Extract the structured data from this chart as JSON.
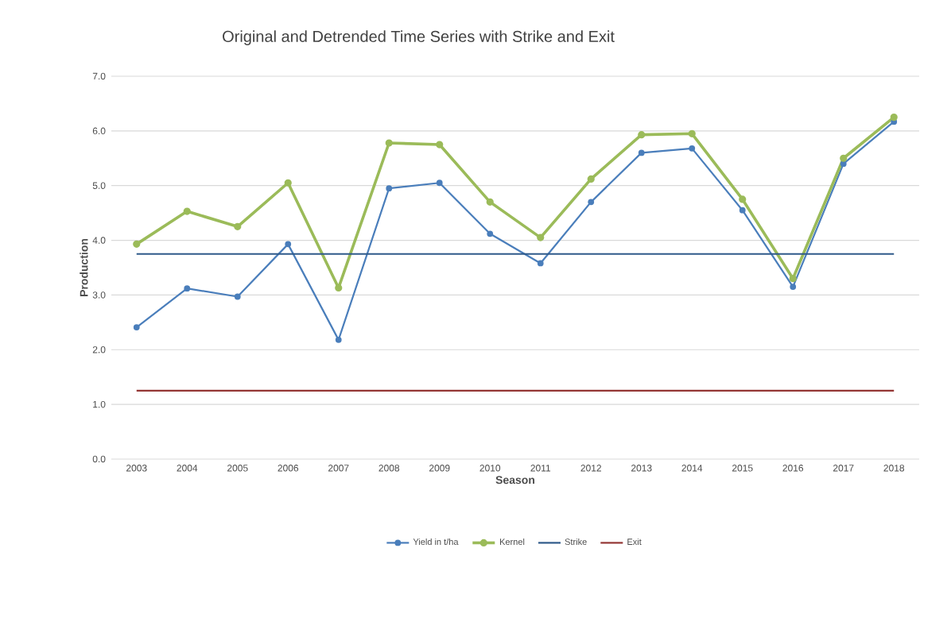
{
  "chart_data": {
    "type": "line",
    "title": "Original and Detrended Time Series with Strike and Exit",
    "xlabel": "Season",
    "ylabel": "Production",
    "categories": [
      "2003",
      "2004",
      "2005",
      "2006",
      "2007",
      "2008",
      "2009",
      "2010",
      "2011",
      "2012",
      "2013",
      "2014",
      "2015",
      "2016",
      "2017",
      "2018"
    ],
    "series": [
      {
        "name": "Yield in t/ha",
        "color": "#4a7ebb",
        "marker": "circle",
        "values": [
          2.41,
          3.12,
          2.97,
          3.93,
          2.18,
          4.95,
          5.05,
          4.12,
          3.58,
          4.7,
          5.6,
          5.68,
          4.55,
          3.15,
          5.4,
          6.17
        ]
      },
      {
        "name": "Kernel",
        "color": "#9bbb59",
        "marker": "circle",
        "values": [
          3.93,
          4.53,
          4.25,
          5.05,
          3.13,
          5.78,
          5.75,
          4.7,
          4.05,
          5.12,
          5.93,
          5.95,
          4.75,
          3.3,
          5.5,
          6.25
        ]
      },
      {
        "name": "Strike",
        "color": "#2f5a8a",
        "marker": "none",
        "values": [
          3.75,
          3.75,
          3.75,
          3.75,
          3.75,
          3.75,
          3.75,
          3.75,
          3.75,
          3.75,
          3.75,
          3.75,
          3.75,
          3.75,
          3.75,
          3.75
        ]
      },
      {
        "name": "Exit",
        "color": "#943634",
        "marker": "none",
        "values": [
          1.25,
          1.25,
          1.25,
          1.25,
          1.25,
          1.25,
          1.25,
          1.25,
          1.25,
          1.25,
          1.25,
          1.25,
          1.25,
          1.25,
          1.25,
          1.25
        ]
      }
    ],
    "ylim": [
      0,
      7
    ],
    "yticks": [
      {
        "value": 0,
        "label": "0.0"
      },
      {
        "value": 1,
        "label": "1.0"
      },
      {
        "value": 2,
        "label": "2.0"
      },
      {
        "value": 3,
        "label": "3.0"
      },
      {
        "value": 4,
        "label": "4.0"
      },
      {
        "value": 5,
        "label": "5.0"
      },
      {
        "value": 6,
        "label": "6.0"
      },
      {
        "value": 7,
        "label": "7.0"
      }
    ],
    "grid": "y",
    "legend": "bottom"
  }
}
